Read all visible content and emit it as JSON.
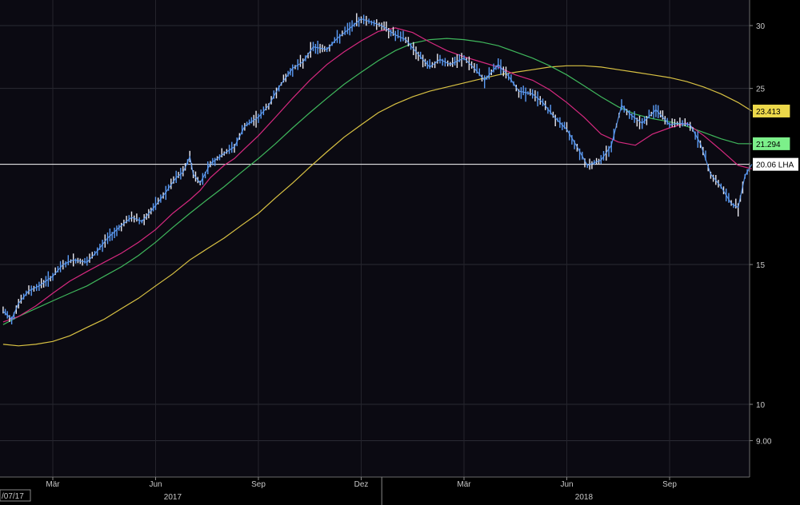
{
  "chart_data": {
    "type": "line",
    "title": "",
    "xlabel": "",
    "ylabel": "",
    "y_scale": "log",
    "ylim": [
      7.8,
      33
    ],
    "y_ticks": [
      {
        "value": 30,
        "label": "30"
      },
      {
        "value": 25,
        "label": "25"
      },
      {
        "value": 15,
        "label": "15"
      },
      {
        "value": 10,
        "label": "10"
      },
      {
        "value": 9,
        "label": "9.00"
      }
    ],
    "x_month_labels": [
      {
        "t": 2.0,
        "label": "Mär"
      },
      {
        "t": 5.0,
        "label": "Jun"
      },
      {
        "t": 8.0,
        "label": "Sep"
      },
      {
        "t": 11.0,
        "label": "Dez"
      },
      {
        "t": 14.0,
        "label": "Mär"
      },
      {
        "t": 17.0,
        "label": "Jun"
      },
      {
        "t": 20.0,
        "label": "Sep"
      }
    ],
    "x_year_labels": [
      {
        "t": 5.5,
        "label": "2017"
      },
      {
        "t": 17.5,
        "label": "2018"
      }
    ],
    "year_divider_t": 11.6,
    "x_range": [
      0.55,
      22.4
    ],
    "start_label": "/07/17",
    "grid": true,
    "reference_line": {
      "value": 20.06
    },
    "series": [
      {
        "role": "price",
        "color": "#5b9bf5",
        "points": [
          [
            0.55,
            13.1
          ],
          [
            0.8,
            12.8
          ],
          [
            1.0,
            13.4
          ],
          [
            1.3,
            13.9
          ],
          [
            1.6,
            14.1
          ],
          [
            2.0,
            14.5
          ],
          [
            2.3,
            15.0
          ],
          [
            2.6,
            15.2
          ],
          [
            3.0,
            15.1
          ],
          [
            3.3,
            15.6
          ],
          [
            3.6,
            16.2
          ],
          [
            4.0,
            16.8
          ],
          [
            4.3,
            17.2
          ],
          [
            4.6,
            17.0
          ],
          [
            5.0,
            17.8
          ],
          [
            5.3,
            18.5
          ],
          [
            5.6,
            19.3
          ],
          [
            5.8,
            19.6
          ],
          [
            6.0,
            20.5
          ],
          [
            6.1,
            19.5
          ],
          [
            6.3,
            19.0
          ],
          [
            6.6,
            20.1
          ],
          [
            7.0,
            20.7
          ],
          [
            7.3,
            21.1
          ],
          [
            7.6,
            22.4
          ],
          [
            8.0,
            23.0
          ],
          [
            8.3,
            23.8
          ],
          [
            8.6,
            25.1
          ],
          [
            9.0,
            26.5
          ],
          [
            9.3,
            27.0
          ],
          [
            9.6,
            28.2
          ],
          [
            10.0,
            28.0
          ],
          [
            10.3,
            28.9
          ],
          [
            10.6,
            29.6
          ],
          [
            11.0,
            30.6
          ],
          [
            11.3,
            30.3
          ],
          [
            11.6,
            30.0
          ],
          [
            12.0,
            29.2
          ],
          [
            12.3,
            28.8
          ],
          [
            12.6,
            27.8
          ],
          [
            13.0,
            26.6
          ],
          [
            13.3,
            27.2
          ],
          [
            13.6,
            26.8
          ],
          [
            14.0,
            27.3
          ],
          [
            14.3,
            26.5
          ],
          [
            14.6,
            25.6
          ],
          [
            15.0,
            26.8
          ],
          [
            15.3,
            25.9
          ],
          [
            15.6,
            24.8
          ],
          [
            16.0,
            24.6
          ],
          [
            16.3,
            24.0
          ],
          [
            16.6,
            23.1
          ],
          [
            17.0,
            22.2
          ],
          [
            17.3,
            21.1
          ],
          [
            17.6,
            20.0
          ],
          [
            18.0,
            20.3
          ],
          [
            18.3,
            21.2
          ],
          [
            18.6,
            23.8
          ],
          [
            18.9,
            23.1
          ],
          [
            19.2,
            22.6
          ],
          [
            19.6,
            23.5
          ],
          [
            20.0,
            22.5
          ],
          [
            20.3,
            22.6
          ],
          [
            20.6,
            22.5
          ],
          [
            20.9,
            21.3
          ],
          [
            21.2,
            19.5
          ],
          [
            21.5,
            18.8
          ],
          [
            21.8,
            17.9
          ],
          [
            22.0,
            17.7
          ],
          [
            22.2,
            19.4
          ],
          [
            22.4,
            20.06
          ]
        ]
      },
      {
        "role": "moving-average",
        "color": "#d6297f",
        "points": [
          [
            0.55,
            12.7
          ],
          [
            1.0,
            12.9
          ],
          [
            1.5,
            13.3
          ],
          [
            2.0,
            13.8
          ],
          [
            2.5,
            14.3
          ],
          [
            3.0,
            14.7
          ],
          [
            3.5,
            15.1
          ],
          [
            4.0,
            15.5
          ],
          [
            4.5,
            16.0
          ],
          [
            5.0,
            16.6
          ],
          [
            5.5,
            17.4
          ],
          [
            6.0,
            18.1
          ],
          [
            6.3,
            18.6
          ],
          [
            6.6,
            19.3
          ],
          [
            7.0,
            20.0
          ],
          [
            7.3,
            20.4
          ],
          [
            7.6,
            21.0
          ],
          [
            8.0,
            21.8
          ],
          [
            8.5,
            23.0
          ],
          [
            9.0,
            24.3
          ],
          [
            9.5,
            25.6
          ],
          [
            10.0,
            26.8
          ],
          [
            10.5,
            27.8
          ],
          [
            11.0,
            28.7
          ],
          [
            11.5,
            29.5
          ],
          [
            12.0,
            29.8
          ],
          [
            12.5,
            29.4
          ],
          [
            13.0,
            28.6
          ],
          [
            13.5,
            27.9
          ],
          [
            14.0,
            27.4
          ],
          [
            14.5,
            27.0
          ],
          [
            15.0,
            26.6
          ],
          [
            15.5,
            26.0
          ],
          [
            16.0,
            25.6
          ],
          [
            16.5,
            24.9
          ],
          [
            17.0,
            24.0
          ],
          [
            17.5,
            23.0
          ],
          [
            18.0,
            21.9
          ],
          [
            18.5,
            21.4
          ],
          [
            19.0,
            21.2
          ],
          [
            19.5,
            21.9
          ],
          [
            20.0,
            22.3
          ],
          [
            20.5,
            22.6
          ],
          [
            21.0,
            21.8
          ],
          [
            21.5,
            20.9
          ],
          [
            22.0,
            20.0
          ],
          [
            22.4,
            19.8
          ]
        ]
      },
      {
        "role": "moving-average",
        "color": "#3fb75c",
        "points": [
          [
            0.55,
            12.6
          ],
          [
            1.0,
            12.9
          ],
          [
            1.5,
            13.2
          ],
          [
            2.0,
            13.5
          ],
          [
            2.5,
            13.8
          ],
          [
            3.0,
            14.1
          ],
          [
            3.5,
            14.5
          ],
          [
            4.0,
            14.9
          ],
          [
            4.5,
            15.4
          ],
          [
            5.0,
            16.0
          ],
          [
            5.5,
            16.7
          ],
          [
            6.0,
            17.4
          ],
          [
            6.5,
            18.1
          ],
          [
            7.0,
            18.8
          ],
          [
            7.5,
            19.6
          ],
          [
            8.0,
            20.4
          ],
          [
            8.5,
            21.3
          ],
          [
            9.0,
            22.3
          ],
          [
            9.5,
            23.3
          ],
          [
            10.0,
            24.3
          ],
          [
            10.5,
            25.3
          ],
          [
            11.0,
            26.2
          ],
          [
            11.5,
            27.1
          ],
          [
            12.0,
            27.9
          ],
          [
            12.5,
            28.5
          ],
          [
            13.0,
            28.8
          ],
          [
            13.5,
            28.9
          ],
          [
            14.0,
            28.8
          ],
          [
            14.5,
            28.6
          ],
          [
            15.0,
            28.3
          ],
          [
            15.5,
            27.8
          ],
          [
            16.0,
            27.3
          ],
          [
            16.5,
            26.7
          ],
          [
            17.0,
            26.0
          ],
          [
            17.5,
            25.2
          ],
          [
            18.0,
            24.4
          ],
          [
            18.5,
            23.7
          ],
          [
            19.0,
            23.2
          ],
          [
            19.5,
            22.9
          ],
          [
            20.0,
            22.7
          ],
          [
            20.5,
            22.4
          ],
          [
            21.0,
            22.0
          ],
          [
            21.5,
            21.6
          ],
          [
            22.0,
            21.3
          ],
          [
            22.4,
            21.294
          ]
        ]
      },
      {
        "role": "moving-average",
        "color": "#d9c243",
        "points": [
          [
            0.55,
            11.9
          ],
          [
            1.0,
            11.85
          ],
          [
            1.5,
            11.9
          ],
          [
            2.0,
            12.0
          ],
          [
            2.5,
            12.2
          ],
          [
            3.0,
            12.5
          ],
          [
            3.5,
            12.8
          ],
          [
            4.0,
            13.2
          ],
          [
            4.5,
            13.6
          ],
          [
            5.0,
            14.1
          ],
          [
            5.5,
            14.6
          ],
          [
            6.0,
            15.2
          ],
          [
            6.5,
            15.7
          ],
          [
            7.0,
            16.2
          ],
          [
            7.5,
            16.8
          ],
          [
            8.0,
            17.4
          ],
          [
            8.5,
            18.2
          ],
          [
            9.0,
            19.0
          ],
          [
            9.5,
            19.9
          ],
          [
            10.0,
            20.8
          ],
          [
            10.5,
            21.7
          ],
          [
            11.0,
            22.5
          ],
          [
            11.5,
            23.3
          ],
          [
            12.0,
            23.9
          ],
          [
            12.5,
            24.4
          ],
          [
            13.0,
            24.8
          ],
          [
            13.5,
            25.1
          ],
          [
            14.0,
            25.4
          ],
          [
            14.5,
            25.7
          ],
          [
            15.0,
            26.0
          ],
          [
            15.5,
            26.2
          ],
          [
            16.0,
            26.4
          ],
          [
            16.5,
            26.6
          ],
          [
            17.0,
            26.7
          ],
          [
            17.5,
            26.7
          ],
          [
            18.0,
            26.6
          ],
          [
            18.5,
            26.4
          ],
          [
            19.0,
            26.2
          ],
          [
            19.5,
            26.0
          ],
          [
            20.0,
            25.8
          ],
          [
            20.5,
            25.5
          ],
          [
            21.0,
            25.1
          ],
          [
            21.5,
            24.6
          ],
          [
            22.0,
            24.0
          ],
          [
            22.4,
            23.413
          ]
        ]
      }
    ],
    "right_tags": [
      {
        "value": 23.413,
        "label": "23.413",
        "bg": "#ecd84a"
      },
      {
        "value": 21.294,
        "label": "21.294",
        "bg": "#7cf08a"
      },
      {
        "value": 20.06,
        "label": "20.06 LHA",
        "bg": "#ffffff"
      }
    ]
  }
}
